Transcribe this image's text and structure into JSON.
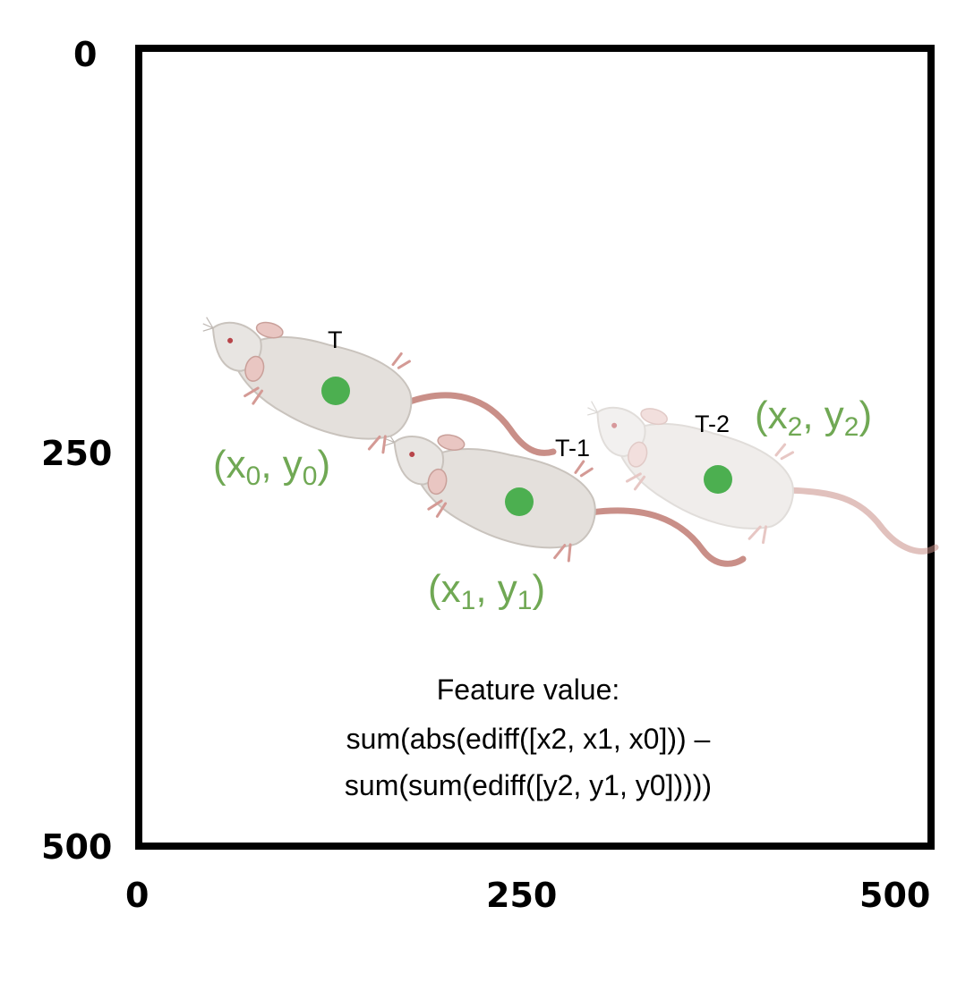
{
  "axis": {
    "y_ticks": [
      "0",
      "250",
      "500"
    ],
    "x_ticks": [
      "0",
      "250",
      "500"
    ]
  },
  "frames": [
    {
      "label": "T",
      "coord": {
        "x_var": "x",
        "y_var": "y",
        "sub": "0"
      }
    },
    {
      "label": "T-1",
      "coord": {
        "x_var": "x",
        "y_var": "y",
        "sub": "1"
      }
    },
    {
      "label": "T-2",
      "coord": {
        "x_var": "x",
        "y_var": "y",
        "sub": "2"
      }
    }
  ],
  "formula": {
    "line1": "Feature value:",
    "line2": "sum(abs(ediff([x2, x1, x0])) –",
    "line3": "sum(sum(ediff([y2, y1, y0]))))"
  },
  "colors": {
    "centroid": "#4caf50",
    "coord_text": "#70a854",
    "frame": "#000000",
    "mouse_body": "#e4e0dc",
    "mouse_tail": "#c98f88"
  },
  "icons": [
    "mouse-icon",
    "centroid-dot"
  ]
}
